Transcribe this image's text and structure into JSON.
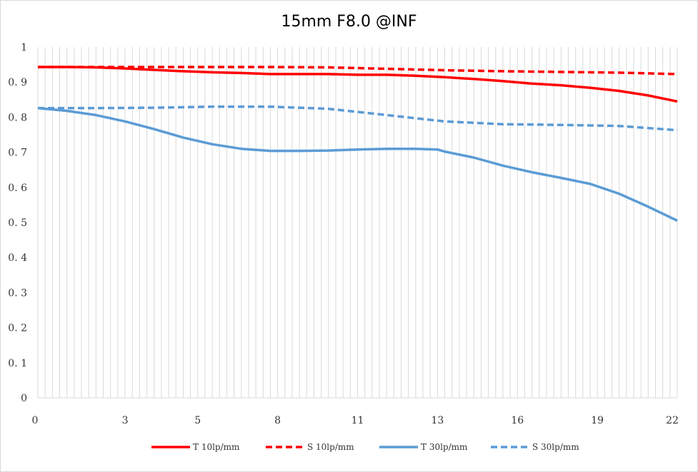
{
  "chart_data": {
    "type": "line",
    "title": "15mm F8.0 @INF",
    "xlabel": "",
    "ylabel": "",
    "xlim": [
      0,
      22
    ],
    "ylim": [
      0,
      1
    ],
    "x_ticks": [
      {
        "v": 0,
        "label": "0"
      },
      {
        "v": 3,
        "label": "3"
      },
      {
        "v": 5.5,
        "label": "5"
      },
      {
        "v": 8.25,
        "label": "8"
      },
      {
        "v": 11,
        "label": "11"
      },
      {
        "v": 13.75,
        "label": "13"
      },
      {
        "v": 16.5,
        "label": "16"
      },
      {
        "v": 19.25,
        "label": "19"
      },
      {
        "v": 22,
        "label": "22"
      }
    ],
    "y_ticks": [
      {
        "v": 0,
        "label": "0"
      },
      {
        "v": 0.1,
        "label": "0. 1"
      },
      {
        "v": 0.2,
        "label": "0. 2"
      },
      {
        "v": 0.3,
        "label": "0. 3"
      },
      {
        "v": 0.4,
        "label": "0. 4"
      },
      {
        "v": 0.5,
        "label": "0. 5"
      },
      {
        "v": 0.6,
        "label": "0. 6"
      },
      {
        "v": 0.7,
        "label": "0. 7"
      },
      {
        "v": 0.8,
        "label": "0. 8"
      },
      {
        "v": 0.9,
        "label": "0. 9"
      },
      {
        "v": 1,
        "label": "1"
      }
    ],
    "grid": "vertical",
    "legend_position": "bottom",
    "series": [
      {
        "name": "T 10lp/mm",
        "color": "#ff0000",
        "style": "solid",
        "x": [
          0,
          1,
          2,
          3,
          4,
          5,
          6,
          7,
          8,
          9,
          10,
          11,
          12,
          13,
          14,
          15,
          16,
          17,
          18,
          19,
          20,
          21,
          22
        ],
        "y": [
          0.943,
          0.943,
          0.942,
          0.939,
          0.935,
          0.931,
          0.928,
          0.926,
          0.923,
          0.923,
          0.923,
          0.921,
          0.921,
          0.918,
          0.914,
          0.909,
          0.903,
          0.896,
          0.891,
          0.884,
          0.875,
          0.862,
          0.845
        ]
      },
      {
        "name": "S 10lp/mm",
        "color": "#ff0000",
        "style": "dashed",
        "x": [
          0,
          2,
          4,
          6,
          8,
          10,
          12,
          14,
          16,
          18,
          20,
          22
        ],
        "y": [
          0.943,
          0.943,
          0.943,
          0.943,
          0.943,
          0.942,
          0.938,
          0.934,
          0.931,
          0.929,
          0.927,
          0.923
        ]
      },
      {
        "name": "T 30lp/mm",
        "color": "#5b9bd5",
        "style": "solid",
        "x": [
          0,
          1,
          2,
          3,
          4,
          5,
          6,
          7,
          8,
          9,
          10,
          11,
          12,
          13,
          13.75,
          14,
          15,
          16,
          17,
          18,
          19,
          20,
          21,
          22
        ],
        "y": [
          0.826,
          0.818,
          0.806,
          0.788,
          0.766,
          0.742,
          0.723,
          0.71,
          0.704,
          0.704,
          0.705,
          0.708,
          0.71,
          0.71,
          0.708,
          0.702,
          0.685,
          0.662,
          0.643,
          0.627,
          0.61,
          0.582,
          0.545,
          0.505
        ]
      },
      {
        "name": "S 30lp/mm",
        "color": "#5b9bd5",
        "style": "dashed",
        "x": [
          0,
          2,
          4,
          6,
          8,
          10,
          12,
          14,
          16,
          18,
          20,
          22
        ],
        "y": [
          0.826,
          0.826,
          0.827,
          0.83,
          0.83,
          0.824,
          0.806,
          0.788,
          0.78,
          0.778,
          0.775,
          0.763
        ]
      }
    ]
  }
}
